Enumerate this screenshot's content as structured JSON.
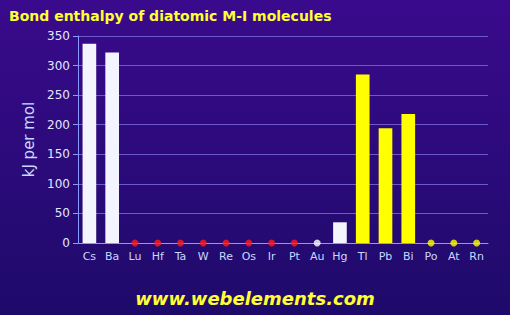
{
  "chart_data": {
    "type": "bar",
    "title": "Bond enthalpy of diatomic M-I molecules",
    "y_label": "kJ per mol",
    "annotations": [
      "www.webelements.com"
    ],
    "categories": [
      "Cs",
      "Ba",
      "Lu",
      "Hf",
      "Ta",
      "W",
      "Re",
      "Os",
      "Ir",
      "Pt",
      "Au",
      "Hg",
      "Tl",
      "Pb",
      "Bi",
      "Po",
      "At",
      "Rn"
    ],
    "values": [
      337,
      322,
      null,
      null,
      null,
      null,
      null,
      null,
      null,
      null,
      null,
      35,
      285,
      194,
      218,
      null,
      null,
      null
    ],
    "colors": [
      "#f4f4ff",
      "#f4f4ff",
      "#ff1a1a",
      "#ff1a1a",
      "#ff1a1a",
      "#ff1a1a",
      "#ff1a1a",
      "#ff1a1a",
      "#ff1a1a",
      "#ff1a1a",
      "#ffffff",
      "#f4f4ff",
      "#ffff00",
      "#ffff00",
      "#ffff00",
      "#ffff00",
      "#ffff00",
      "#ffff00"
    ],
    "ylim": [
      0,
      350
    ],
    "yticks": [
      0,
      50,
      100,
      150,
      200,
      250,
      300,
      350
    ],
    "grid": true
  }
}
